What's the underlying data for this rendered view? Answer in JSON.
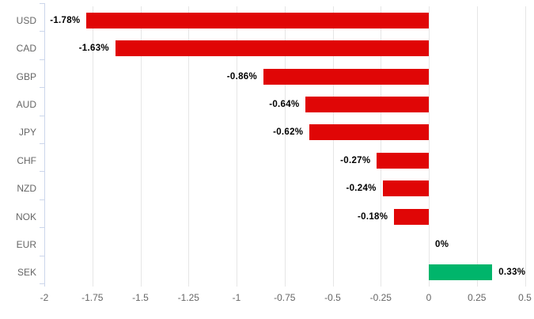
{
  "chart_data": {
    "type": "bar",
    "orientation": "horizontal",
    "title": "",
    "xlabel": "",
    "ylabel": "",
    "categories": [
      "USD",
      "CAD",
      "GBP",
      "AUD",
      "JPY",
      "CHF",
      "NZD",
      "NOK",
      "EUR",
      "SEK"
    ],
    "values": [
      -1.78,
      -1.63,
      -0.86,
      -0.64,
      -0.62,
      -0.27,
      -0.24,
      -0.18,
      0,
      0.33
    ],
    "value_labels": [
      "-1.78%",
      "-1.63%",
      "-0.86%",
      "-0.64%",
      "-0.62%",
      "-0.27%",
      "-0.24%",
      "-0.18%",
      "0%",
      "0.33%"
    ],
    "xlim": [
      -2,
      0.5
    ],
    "x_tick_step": 0.25,
    "x_tick_labels": [
      "-2",
      "-1.75",
      "-1.5",
      "-1.25",
      "-1",
      "-0.75",
      "-0.5",
      "-0.25",
      "0",
      "0.25",
      "0.5"
    ],
    "grid": "vertical-on",
    "legend": "none",
    "colors": {
      "negative_bar": "#e00606",
      "positive_bar": "#00b56b",
      "axis_line": "#ccd6eb",
      "gridline": "#e6e6e6",
      "axis_text": "#666666",
      "value_label_text": "#000000",
      "background": "#ffffff"
    }
  }
}
